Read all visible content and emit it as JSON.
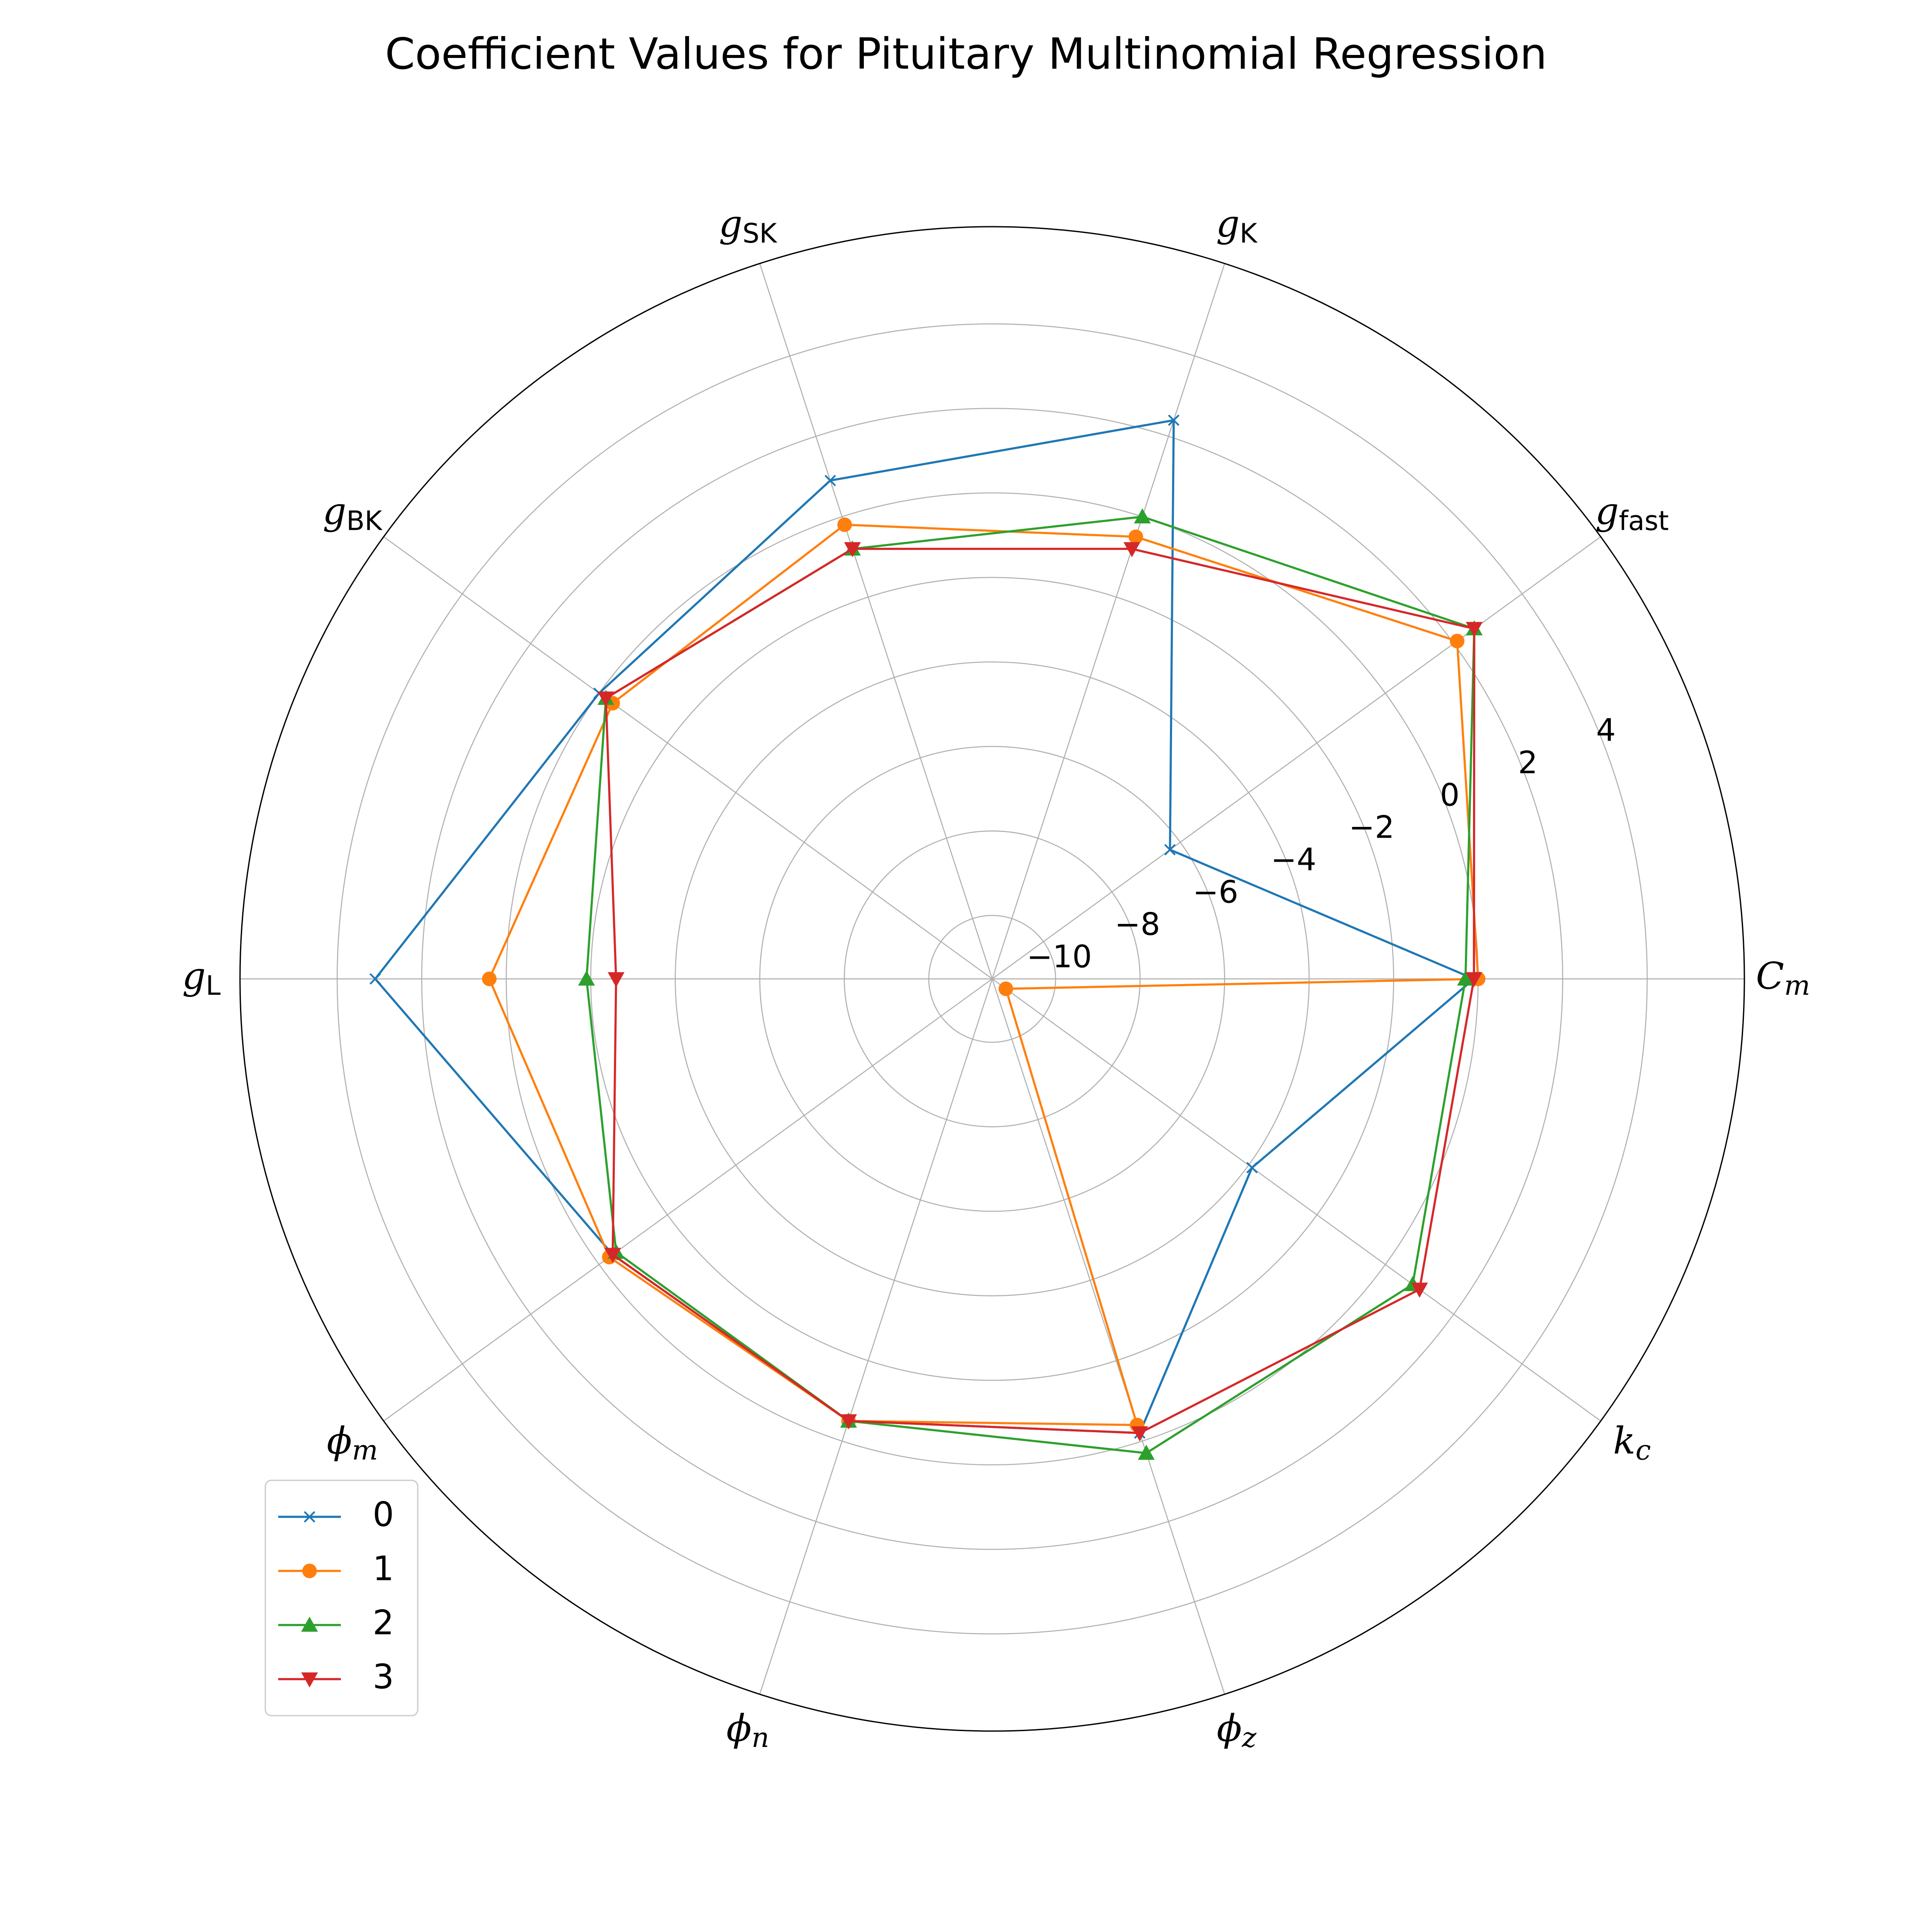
{
  "chart_data": {
    "type": "radar",
    "title": "Coefficient Values for Pituitary Multinomial Regression",
    "axes": [
      {
        "var": "C",
        "sub": "m",
        "sub_style": "math"
      },
      {
        "var": "g",
        "sub": "fast",
        "sub_style": "text"
      },
      {
        "var": "g",
        "sub": "K",
        "sub_style": "text"
      },
      {
        "var": "g",
        "sub": "SK",
        "sub_style": "text"
      },
      {
        "var": "g",
        "sub": "BK",
        "sub_style": "text"
      },
      {
        "var": "g",
        "sub": "L",
        "sub_style": "text"
      },
      {
        "var": "ϕ",
        "sub": "m",
        "sub_style": "math"
      },
      {
        "var": "ϕ",
        "sub": "n",
        "sub_style": "math"
      },
      {
        "var": "ϕ",
        "sub": "z",
        "sub_style": "math"
      },
      {
        "var": "k",
        "sub": "c",
        "sub_style": "math"
      }
    ],
    "rlim": [
      -11.5,
      6.3
    ],
    "rticks": [
      -10,
      -8,
      -6,
      -4,
      -2,
      0,
      2,
      4
    ],
    "rtick_labels": [
      "−10",
      "−8",
      "−6",
      "−4",
      "−2",
      "0",
      "2",
      "4"
    ],
    "grid": true,
    "legend_position": "lower-left",
    "series": [
      {
        "name": "0",
        "color": "#1f77b4",
        "marker": "x",
        "values": [
          -0.1,
          -6.3,
          2.4,
          0.9,
          0.0,
          3.1,
          -0.4,
          -0.5,
          -0.2,
          -3.9
        ]
      },
      {
        "name": "1",
        "color": "#ff7f0e",
        "marker": "circle",
        "values": [
          0.0,
          2.1,
          -0.5,
          -0.2,
          -0.4,
          0.4,
          -0.3,
          -0.5,
          -0.4,
          -11.1
        ]
      },
      {
        "name": "2",
        "color": "#2ca02c",
        "marker": "triangle-up",
        "values": [
          -0.3,
          2.6,
          0.0,
          -0.8,
          -0.2,
          -1.9,
          -0.5,
          -0.5,
          0.3,
          0.8
        ]
      },
      {
        "name": "3",
        "color": "#d62728",
        "marker": "triangle-down",
        "values": [
          -0.1,
          2.6,
          -0.8,
          -0.8,
          -0.2,
          -2.6,
          -0.4,
          -0.5,
          -0.2,
          1.0
        ]
      }
    ]
  }
}
